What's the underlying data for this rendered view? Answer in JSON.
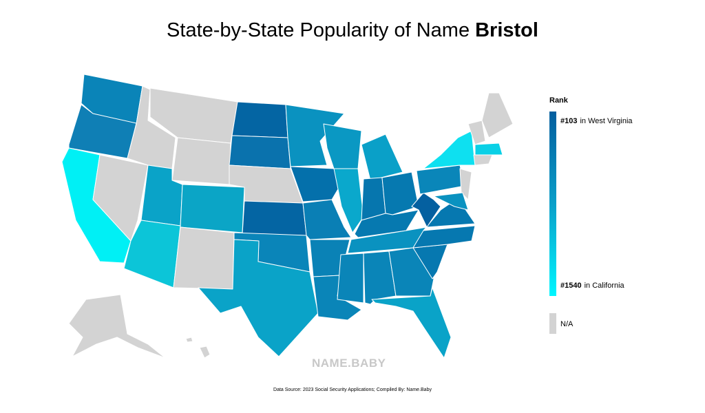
{
  "title": {
    "text": "State-by-State Popularity of Name",
    "name": "Bristol"
  },
  "legend": {
    "title": "Rank",
    "top": {
      "rank": "#103",
      "state": "in West Virginia"
    },
    "bottom": {
      "rank": "#1540",
      "state": "in California"
    },
    "na": "N/A"
  },
  "watermark": "NAME.BABY",
  "source": "Data Source: 2023 Social Security Applications; Compiled By: Name.Baby"
}
